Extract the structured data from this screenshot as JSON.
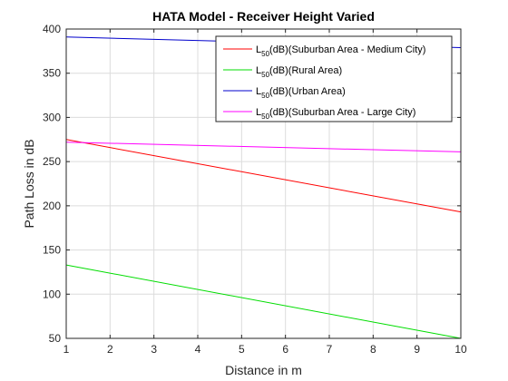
{
  "chart_data": {
    "type": "line",
    "title": "HATA Model - Receiver Height Varied",
    "xlabel": "Distance in m",
    "ylabel": "Path Loss in dB",
    "xlim": [
      1,
      10
    ],
    "ylim": [
      50,
      400
    ],
    "xticks": [
      1,
      2,
      3,
      4,
      5,
      6,
      7,
      8,
      9,
      10
    ],
    "yticks": [
      50,
      100,
      150,
      200,
      250,
      300,
      350,
      400
    ],
    "grid": true,
    "legend_position": "top-right",
    "series": [
      {
        "name_main": "L",
        "name_sub": "50",
        "name_rest": "(dB)(Suburban Area - Medium City)",
        "color": "#ff0000",
        "x": [
          1,
          10
        ],
        "y": [
          275,
          193
        ]
      },
      {
        "name_main": "L",
        "name_sub": "50",
        "name_rest": "(dB)(Rural Area)",
        "color": "#00dd00",
        "x": [
          1,
          10
        ],
        "y": [
          133,
          50
        ]
      },
      {
        "name_main": "L",
        "name_sub": "50",
        "name_rest": "(dB)(Urban Area)",
        "color": "#0000cc",
        "x": [
          1,
          10
        ],
        "y": [
          391,
          379
        ]
      },
      {
        "name_main": "L",
        "name_sub": "50",
        "name_rest": "(dB)(Suburban Area - Large City)",
        "color": "#ff00ff",
        "x": [
          1,
          10
        ],
        "y": [
          272,
          261
        ]
      }
    ]
  }
}
